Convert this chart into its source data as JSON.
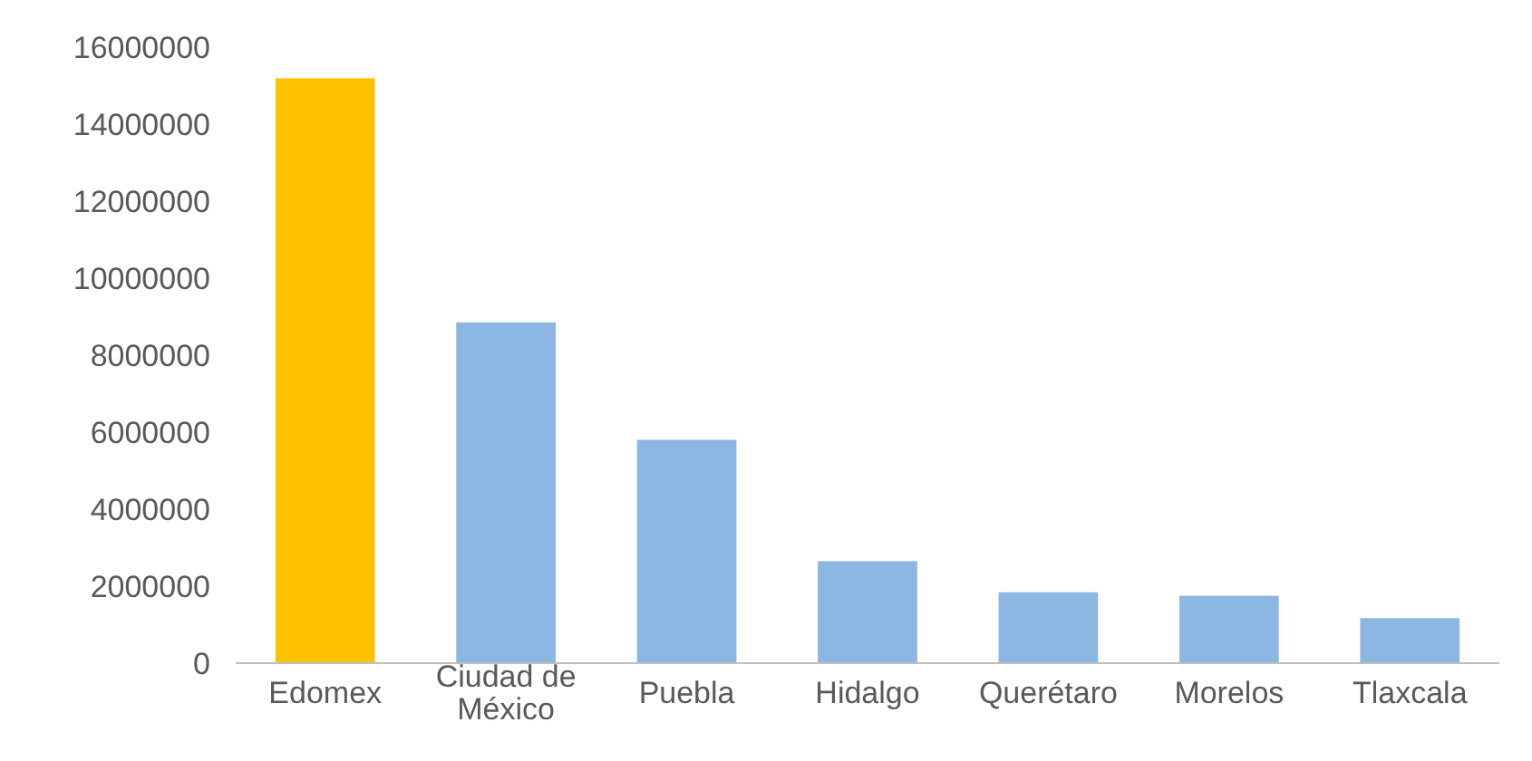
{
  "chart_data": {
    "type": "bar",
    "categories": [
      "Edomex",
      "Ciudad de México",
      "Puebla",
      "Hidalgo",
      "Querétaro",
      "Morelos",
      "Tlaxcala"
    ],
    "values": [
      15190000,
      8850000,
      5800000,
      2650000,
      1840000,
      1750000,
      1170000
    ],
    "colors": [
      "#ffc000",
      "#8cb7e2",
      "#8cb7e2",
      "#8cb7e2",
      "#8cb7e2",
      "#8cb7e2",
      "#8cb7e2"
    ],
    "ylim": [
      0,
      16000000
    ],
    "yticks": [
      0,
      2000000,
      4000000,
      6000000,
      8000000,
      10000000,
      12000000,
      14000000,
      16000000
    ],
    "grid": false
  }
}
